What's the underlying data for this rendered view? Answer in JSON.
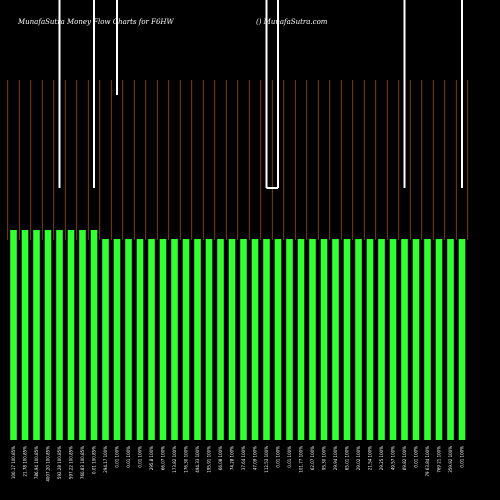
{
  "chart_data": {
    "type": "bar",
    "title": "MunafaSutra  Money Flow  Charts for F6HW",
    "subtitle": "() MunafaSutra.com",
    "categories": [
      "100.17 100.85%",
      "21.78 100.85%",
      "786.94 100.85%",
      "4007.20 100.85%",
      "592.28 100.85%",
      "597.22 100.85%",
      "760.83 100.85%",
      "0.01 100.85%",
      "294.17 100%",
      "0.01 100%",
      "0.01 100%",
      "0.01 100%",
      "295.8 100%",
      "66.07 100%",
      "173.82 100%",
      "176.30 100%",
      "494.33 100%",
      "195.91 100%",
      "66.08 100%",
      "74.28 100%",
      "37.64 100%",
      "47.09 100%",
      "112.53 100%",
      "0.01 100%",
      "0.01 100%",
      "101.77 100%",
      "62.07 100%",
      "95.30 100%",
      "29.94 100%",
      "65.01 100%",
      "29.02 100%",
      "21.54 100%",
      "29.25 100%",
      "49.57 100%",
      "69.82 100%",
      "0.01 100%",
      "79 63.84 100%",
      "769 21 100%",
      "359.92 100%",
      "0.01 100%"
    ],
    "values": [
      210,
      210,
      210,
      210,
      210,
      210,
      210,
      210,
      201,
      201,
      201,
      201,
      201,
      201,
      201,
      201,
      201,
      201,
      201,
      201,
      201,
      201,
      201,
      201,
      201,
      201,
      201,
      201,
      201,
      201,
      201,
      201,
      201,
      201,
      201,
      201,
      201,
      201,
      201,
      201
    ],
    "color": "#33ff33",
    "line_values": [
      null,
      null,
      null,
      null,
      252,
      null,
      null,
      252,
      null,
      345,
      null,
      null,
      null,
      null,
      null,
      null,
      null,
      null,
      null,
      null,
      null,
      null,
      252,
      252,
      null,
      null,
      null,
      null,
      null,
      null,
      null,
      null,
      null,
      null,
      252,
      null,
      null,
      null,
      null,
      252
    ],
    "line_color": "#ffffff",
    "ylim": [
      0,
      440
    ]
  }
}
